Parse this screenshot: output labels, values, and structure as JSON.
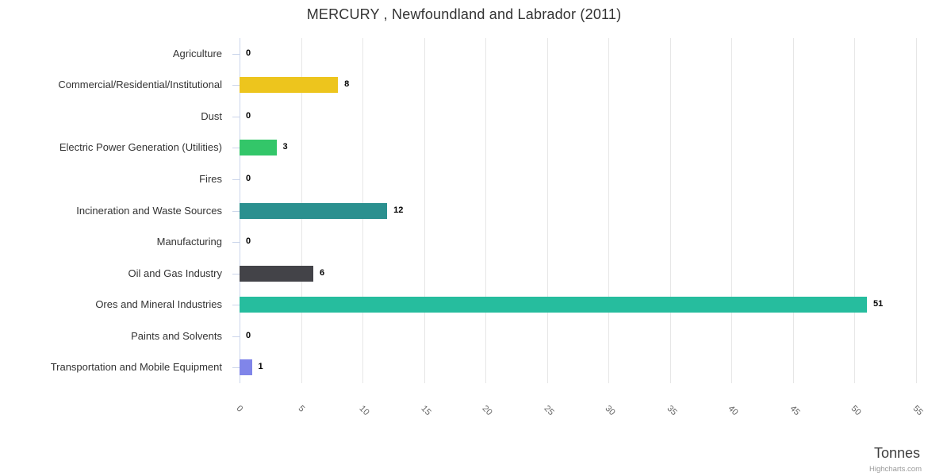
{
  "credits": "Highcharts.com",
  "chart_data": {
    "type": "bar",
    "orientation": "horizontal",
    "title": "MERCURY , Newfoundland and Labrador (2011)",
    "xlabel": "Tonnes",
    "ylabel": "",
    "categories": [
      "Agriculture",
      "Commercial/Residential/Institutional",
      "Dust",
      "Electric Power Generation (Utilities)",
      "Fires",
      "Incineration and Waste Sources",
      "Manufacturing",
      "Oil and Gas Industry",
      "Ores and Mineral Industries",
      "Paints and Solvents",
      "Transportation and Mobile Equipment"
    ],
    "values": [
      0,
      8,
      0,
      3,
      0,
      12,
      0,
      6,
      51,
      0,
      1
    ],
    "data_labels": [
      "0",
      "8",
      "0",
      "3",
      "0",
      "12",
      "0",
      "6",
      "51",
      "0",
      "1"
    ],
    "bar_colors": [
      null,
      "#edc51d",
      null,
      "#33c669",
      null,
      "#2b908f",
      null,
      "#434348",
      "#26bd9e",
      null,
      "#8085e9"
    ],
    "value_axis": {
      "min": 0,
      "max": 55,
      "tick_interval": 5,
      "tick_labels": [
        "0",
        "5",
        "10",
        "15",
        "20",
        "25",
        "30",
        "35",
        "40",
        "45",
        "50",
        "55"
      ],
      "label_rotation_deg": 45
    },
    "grid": true,
    "legend": false,
    "colors_meta": {
      "grid_color": "#e6e6e6",
      "axis_line_color": "#ccd6eb",
      "title_color": "#333333",
      "category_label_color": "#333333",
      "tick_label_color": "#666666",
      "data_label_color": "#000000",
      "credits_color": "#999999"
    }
  }
}
